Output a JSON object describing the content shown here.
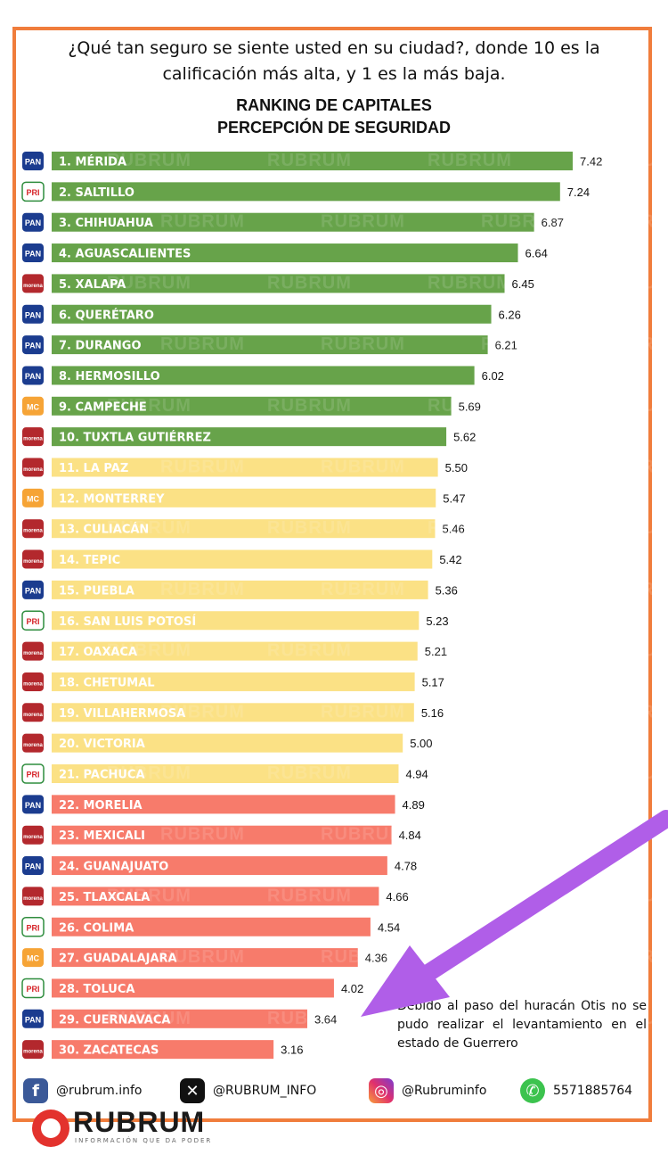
{
  "question": "¿Qué tan seguro se siente usted en su ciudad?, donde 10 es la calificación más alta, y  1 es la más baja.",
  "chart_title_line1": "RANKING DE CAPITALES",
  "chart_title_line2": "PERCEPCIÓN DE SEGURIDAD",
  "watermark_text": "RUBRUM",
  "note": "Debido al paso del huracán Otis no se pudo realizar el levantamiento en el estado de Guerrero",
  "colors": {
    "green": "#67a34a",
    "yellow": "#fbe185",
    "red": "#f77b6b",
    "frame": "#f07d3c",
    "arrow": "#b05ee8",
    "PAN": "#1b3c8f",
    "PRI": "#d6252a",
    "morena": "#b3282d",
    "MC": "#f6a436"
  },
  "party_legend": {
    "PAN": "PAN",
    "PRI": "PRI",
    "morena": "morena",
    "MC": "MC"
  },
  "chart_data": {
    "type": "bar",
    "orientation": "horizontal",
    "title": "RANKING DE CAPITALES PERCEPCIÓN DE SEGURIDAD",
    "categories": [
      "1. MÉRIDA",
      "2. SALTILLO",
      "3. CHIHUAHUA",
      "4. AGUASCALIENTES",
      "5. XALAPA",
      "6. QUERÉTARO",
      "7. DURANGO",
      "8. HERMOSILLO",
      "9. CAMPECHE",
      "10. TUXTLA GUTIÉRREZ",
      "11. LA PAZ",
      "12. MONTERREY",
      "13. CULIACÁN",
      "14. TEPIC",
      "15. PUEBLA",
      "16. SAN LUIS POTOSÍ",
      "17. OAXACA",
      "18. CHETUMAL",
      "19. VILLAHERMOSA",
      "20. VICTORIA",
      "21. PACHUCA",
      "22. MORELIA",
      "23. MEXICALI",
      "24. GUANAJUATO",
      "25. TLAXCALA",
      "26. COLIMA",
      "27. GUADALAJARA",
      "28. TOLUCA",
      "29. CUERNAVACA",
      "30. ZACATECAS"
    ],
    "values": [
      7.42,
      7.24,
      6.87,
      6.64,
      6.45,
      6.26,
      6.21,
      6.02,
      5.69,
      5.62,
      5.5,
      5.47,
      5.46,
      5.42,
      5.36,
      5.23,
      5.21,
      5.17,
      5.16,
      5.0,
      4.94,
      4.89,
      4.84,
      4.78,
      4.66,
      4.54,
      4.36,
      4.02,
      3.64,
      3.16
    ],
    "value_labels": [
      "7.42",
      "7.24",
      "6.87",
      "6.64",
      "6.45",
      "6.26",
      "6.21",
      "6.02",
      "5.69",
      "5.62",
      "5.50",
      "5.47",
      "5.46",
      "5.42",
      "5.36",
      "5.23",
      "5.21",
      "5.17",
      "5.16",
      "5.00",
      "4.94",
      "4.89",
      "4.84",
      "4.78",
      "4.66",
      "4.54",
      "4.36",
      "4.02",
      "3.64",
      "3.16"
    ],
    "party": [
      "PAN",
      "PRI",
      "PAN",
      "PAN",
      "morena",
      "PAN",
      "PAN",
      "PAN",
      "MC",
      "morena",
      "morena",
      "MC",
      "morena",
      "morena",
      "PAN",
      "PRI",
      "morena",
      "morena",
      "morena",
      "morena",
      "PRI",
      "PAN",
      "morena",
      "PAN",
      "morena",
      "PRI",
      "MC",
      "PRI",
      "PAN",
      "morena"
    ],
    "band": [
      "green",
      "green",
      "green",
      "green",
      "green",
      "green",
      "green",
      "green",
      "green",
      "green",
      "yellow",
      "yellow",
      "yellow",
      "yellow",
      "yellow",
      "yellow",
      "yellow",
      "yellow",
      "yellow",
      "yellow",
      "yellow",
      "red",
      "red",
      "red",
      "red",
      "red",
      "red",
      "red",
      "red",
      "red"
    ],
    "xlim": [
      0,
      7.42
    ],
    "grid": false,
    "legend": "none"
  },
  "footer": {
    "facebook": "@rubrum.info",
    "x": "@RUBRUM_INFO",
    "instagram": "@Rubruminfo",
    "whatsapp": "5571885764"
  },
  "logo": {
    "name": "RUBRUM",
    "tagline": "INFORMACIÓN QUE DA PODER"
  }
}
